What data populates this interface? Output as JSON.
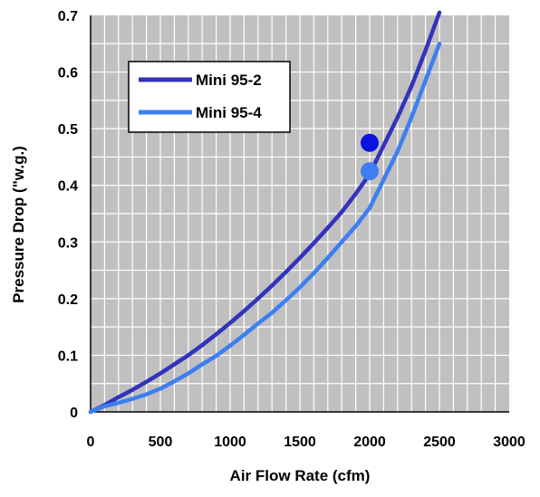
{
  "chart_data": {
    "type": "line",
    "title": "",
    "xlabel": "Air Flow Rate (cfm)",
    "ylabel": "Pressure Drop (\"w.g.)",
    "xlim": [
      0,
      3000
    ],
    "ylim": [
      0,
      0.7
    ],
    "xticks": [
      0,
      500,
      1000,
      1500,
      2000,
      2500,
      3000
    ],
    "yticks": [
      0,
      0.1,
      0.2,
      0.3,
      0.4,
      0.5,
      0.6,
      0.7
    ],
    "xtick_labels": [
      "0",
      "500",
      "1000",
      "1500",
      "2000",
      "2500",
      "3000"
    ],
    "ytick_labels": [
      "0",
      "0.1",
      "0.2",
      "0.3",
      "0.4",
      "0.5",
      "0.6",
      "0.7"
    ],
    "grid": true,
    "legend_position": "upper-left",
    "plot_background": "#c0c0c0",
    "page_background": "#ffffff",
    "series": [
      {
        "name": "Mini 95-2",
        "color": "#3333bb",
        "x": [
          0,
          100,
          200,
          300,
          400,
          500,
          600,
          700,
          800,
          900,
          1000,
          1100,
          1200,
          1300,
          1400,
          1500,
          1600,
          1700,
          1800,
          1900,
          2000,
          2100,
          2200,
          2300,
          2400,
          2500
        ],
        "y": [
          0,
          0.012,
          0.026,
          0.039,
          0.053,
          0.068,
          0.084,
          0.1,
          0.118,
          0.137,
          0.157,
          0.178,
          0.2,
          0.223,
          0.247,
          0.272,
          0.298,
          0.325,
          0.353,
          0.385,
          0.42,
          0.47,
          0.52,
          0.575,
          0.638,
          0.705
        ]
      },
      {
        "name": "Mini 95-4",
        "color": "#3d7ff0",
        "x": [
          0,
          100,
          200,
          300,
          400,
          500,
          600,
          700,
          800,
          900,
          1000,
          1100,
          1200,
          1300,
          1400,
          1500,
          1600,
          1700,
          1800,
          1900,
          2000,
          2100,
          2200,
          2300,
          2400,
          2500
        ],
        "y": [
          0,
          0.01,
          0.016,
          0.023,
          0.031,
          0.041,
          0.054,
          0.068,
          0.084,
          0.099,
          0.117,
          0.136,
          0.156,
          0.175,
          0.197,
          0.22,
          0.245,
          0.272,
          0.3,
          0.328,
          0.36,
          0.41,
          0.46,
          0.52,
          0.585,
          0.65
        ]
      }
    ],
    "markers": [
      {
        "series": "Mini 95-2",
        "x": 2000,
        "y": 0.475,
        "color": "#0a14e0"
      },
      {
        "series": "Mini 95-4",
        "x": 2000,
        "y": 0.425,
        "color": "#3d7ff0"
      }
    ]
  }
}
